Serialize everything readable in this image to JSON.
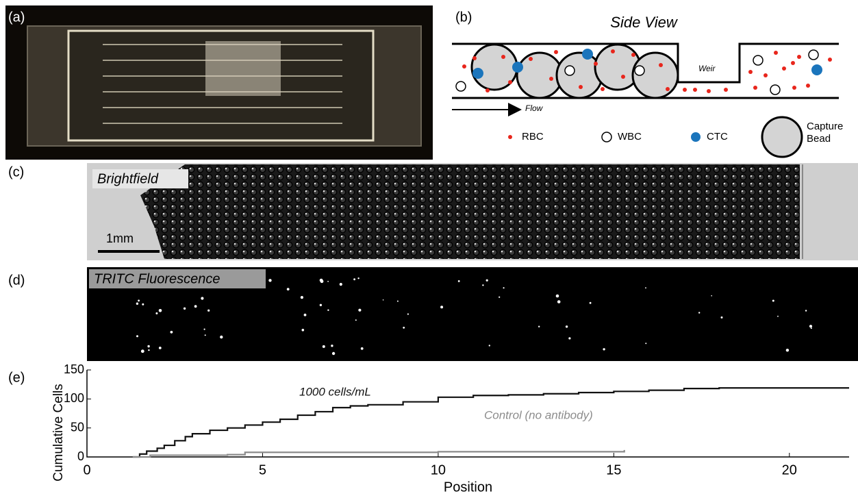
{
  "panels": {
    "a": {
      "label": "(a)"
    },
    "b": {
      "label": "(b)",
      "title": "Side View",
      "weir": "Weir",
      "flow": "Flow",
      "legend": [
        "RBC",
        "WBC",
        "CTC",
        "Capture Bead"
      ]
    },
    "c": {
      "label": "(c)",
      "title": "Brightfield",
      "scale": "1mm"
    },
    "d": {
      "label": "(d)",
      "title": "TRITC Fluorescence"
    },
    "e": {
      "label": "(e)"
    }
  },
  "chart_data": {
    "type": "line",
    "x_label": "Position",
    "y_label": "Cumulative Cells",
    "xlim": [
      0,
      21.7
    ],
    "ylim": [
      0,
      150
    ],
    "xticks": [
      0,
      5,
      10,
      15,
      20
    ],
    "yticks": [
      0,
      50,
      100,
      150
    ],
    "step": true,
    "series": [
      {
        "name": "1000 cells/mL",
        "color": "#111111",
        "x": [
          1.3,
          1.5,
          1.7,
          2.0,
          2.2,
          2.5,
          2.8,
          3.0,
          3.5,
          4.0,
          4.5,
          5.0,
          5.5,
          6.0,
          6.5,
          7.0,
          7.5,
          8.0,
          9.0,
          10.0,
          11.0,
          12.0,
          13.0,
          14.0,
          15.0,
          16.0,
          17.0,
          18.0,
          21.7
        ],
        "values": [
          0,
          5,
          10,
          15,
          20,
          28,
          35,
          40,
          46,
          50,
          55,
          60,
          65,
          72,
          78,
          85,
          88,
          90,
          95,
          103,
          106,
          107,
          109,
          111,
          113,
          115,
          118,
          119,
          119
        ]
      },
      {
        "name": "Control (no antibody)",
        "color": "#8c8c8c",
        "x": [
          1.3,
          1.8,
          4.0,
          4.5,
          10.0,
          15.3
        ],
        "values": [
          0,
          3,
          4,
          8,
          9,
          12
        ]
      }
    ]
  }
}
